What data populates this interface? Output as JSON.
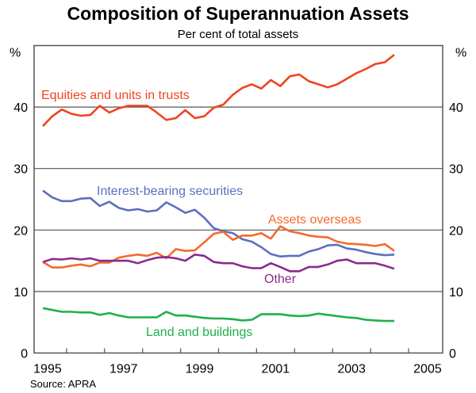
{
  "chart_data": {
    "type": "line",
    "title": "Composition of Superannuation Assets",
    "subtitle": "Per cent of total assets",
    "ylabel_left": "%",
    "ylabel_right": "%",
    "ylim": [
      0,
      50
    ],
    "yticks": [
      0,
      10,
      20,
      30,
      40
    ],
    "xlim": [
      1995.0,
      2005.9
    ],
    "xticks_labels": [
      "1995",
      "1997",
      "1999",
      "2001",
      "2003",
      "2005"
    ],
    "grid": true,
    "x_frequency": "quarterly",
    "x_start": 1995.375,
    "source": "Source: APRA",
    "series": [
      {
        "name": "Equities and units in trusts",
        "color": "#f0441e",
        "values": [
          36.9,
          38.5,
          39.6,
          38.9,
          38.6,
          38.7,
          40.2,
          39.1,
          39.8,
          40.2,
          40.2,
          40.2,
          39.1,
          37.9,
          38.2,
          39.5,
          38.2,
          38.5,
          39.9,
          40.4,
          42.0,
          43.1,
          43.7,
          43.0,
          44.4,
          43.4,
          45.0,
          45.3,
          44.2,
          43.7,
          43.2,
          43.7,
          44.6,
          45.5,
          46.2,
          47.0,
          47.3,
          48.5
        ]
      },
      {
        "name": "Interest-bearing securities",
        "color": "#5b6fbf",
        "values": [
          26.4,
          25.3,
          24.7,
          24.7,
          25.1,
          25.2,
          23.9,
          24.6,
          23.6,
          23.2,
          23.4,
          23.0,
          23.2,
          24.5,
          23.7,
          22.8,
          23.3,
          22.0,
          20.3,
          19.8,
          19.5,
          18.5,
          18.1,
          17.2,
          16.1,
          15.7,
          15.8,
          15.8,
          16.5,
          16.9,
          17.5,
          17.6,
          17.0,
          16.8,
          16.4,
          16.1,
          15.9,
          16.0
        ]
      },
      {
        "name": "Assets overseas",
        "color": "#f46a2c",
        "values": [
          14.8,
          13.9,
          13.9,
          14.2,
          14.4,
          14.1,
          14.7,
          14.7,
          15.5,
          15.8,
          16.0,
          15.8,
          16.3,
          15.4,
          16.9,
          16.6,
          16.7,
          18.0,
          19.4,
          19.7,
          18.4,
          19.1,
          19.1,
          19.5,
          18.6,
          20.6,
          19.8,
          19.5,
          19.1,
          18.9,
          18.8,
          18.1,
          17.8,
          17.7,
          17.6,
          17.4,
          17.7,
          16.6
        ]
      },
      {
        "name": "Other",
        "color": "#8b2a8e",
        "values": [
          14.8,
          15.3,
          15.2,
          15.4,
          15.2,
          15.4,
          15.0,
          15.0,
          15.0,
          15.0,
          14.6,
          15.1,
          15.5,
          15.6,
          15.4,
          15.0,
          16.0,
          15.8,
          14.8,
          14.6,
          14.6,
          14.1,
          13.8,
          13.8,
          14.6,
          14.0,
          13.3,
          13.3,
          14.0,
          14.0,
          14.4,
          15.0,
          15.2,
          14.6,
          14.6,
          14.6,
          14.2,
          13.7
        ]
      },
      {
        "name": "Land and buildings",
        "color": "#1fb04a",
        "values": [
          7.3,
          7.0,
          6.7,
          6.7,
          6.6,
          6.6,
          6.2,
          6.5,
          6.1,
          5.8,
          5.8,
          5.8,
          5.8,
          6.7,
          6.1,
          6.1,
          5.9,
          5.7,
          5.6,
          5.6,
          5.5,
          5.3,
          5.4,
          6.3,
          6.3,
          6.3,
          6.1,
          6.0,
          6.1,
          6.4,
          6.2,
          6.0,
          5.8,
          5.7,
          5.4,
          5.3,
          5.2,
          5.2
        ]
      }
    ]
  }
}
